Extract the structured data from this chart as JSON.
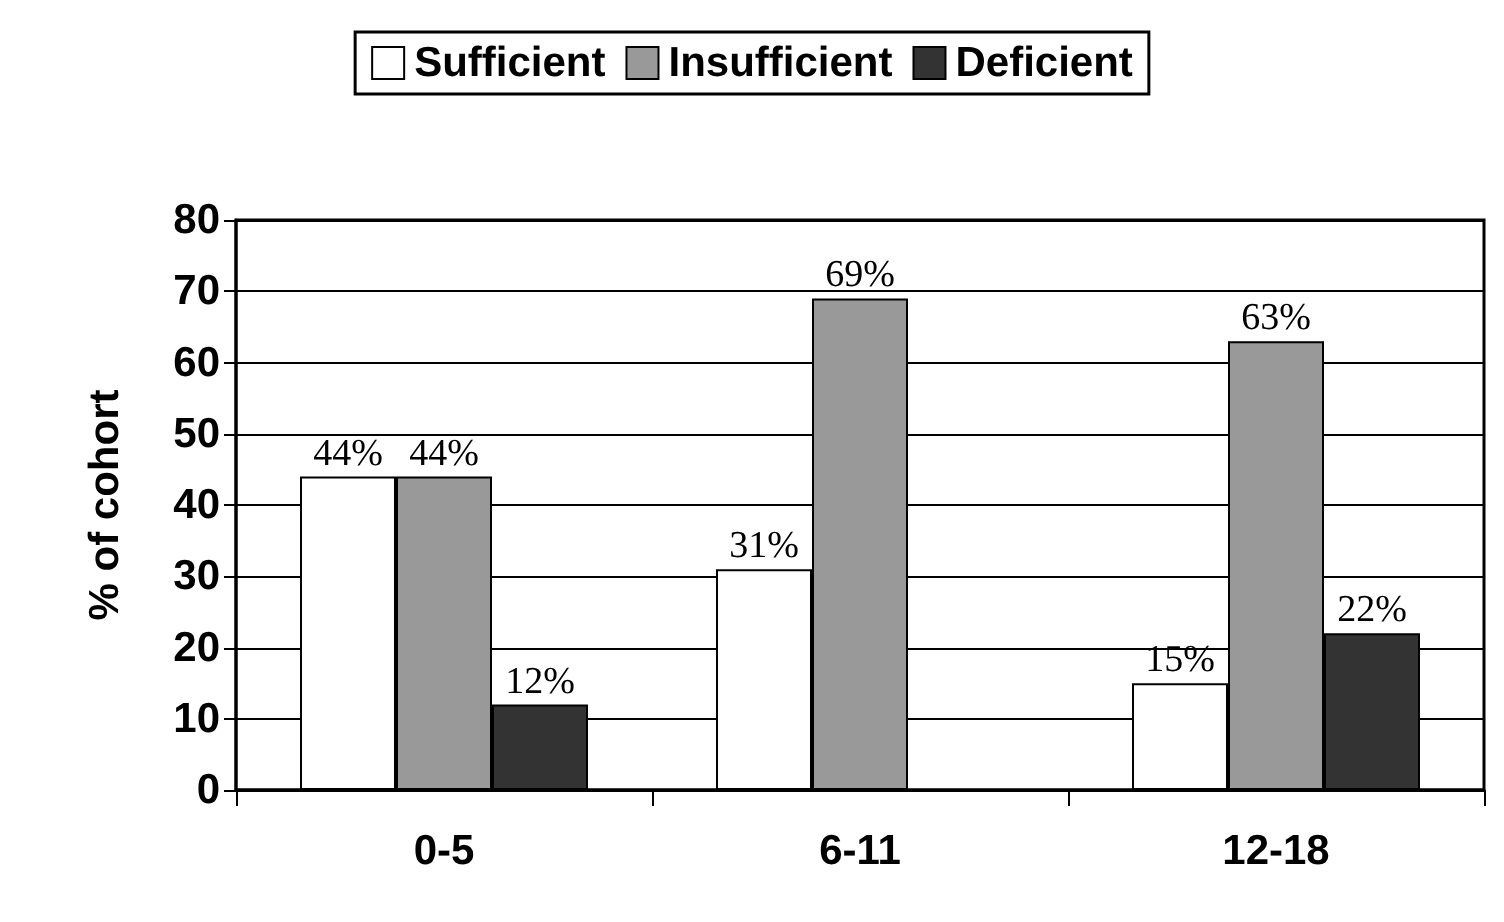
{
  "chart_data": {
    "type": "bar",
    "categories": [
      "0-5",
      "6-11",
      "12-18"
    ],
    "series": [
      {
        "name": "Sufficient",
        "color": "#ffffff",
        "values": [
          44,
          31,
          15
        ],
        "value_labels": [
          "44%",
          "31%",
          "15%"
        ]
      },
      {
        "name": "Insufficient",
        "color": "#999999",
        "values": [
          44,
          69,
          63
        ],
        "value_labels": [
          "44%",
          "69%",
          "63%"
        ]
      },
      {
        "name": "Deficient",
        "color": "#333333",
        "values": [
          12,
          null,
          22
        ],
        "value_labels": [
          "12%",
          null,
          "22%"
        ]
      }
    ],
    "ylabel": "% of cohort",
    "ylim": [
      0,
      80
    ],
    "yticks": [
      0,
      10,
      20,
      30,
      40,
      50,
      60,
      70,
      80
    ],
    "grid": "y",
    "legend": "top"
  }
}
